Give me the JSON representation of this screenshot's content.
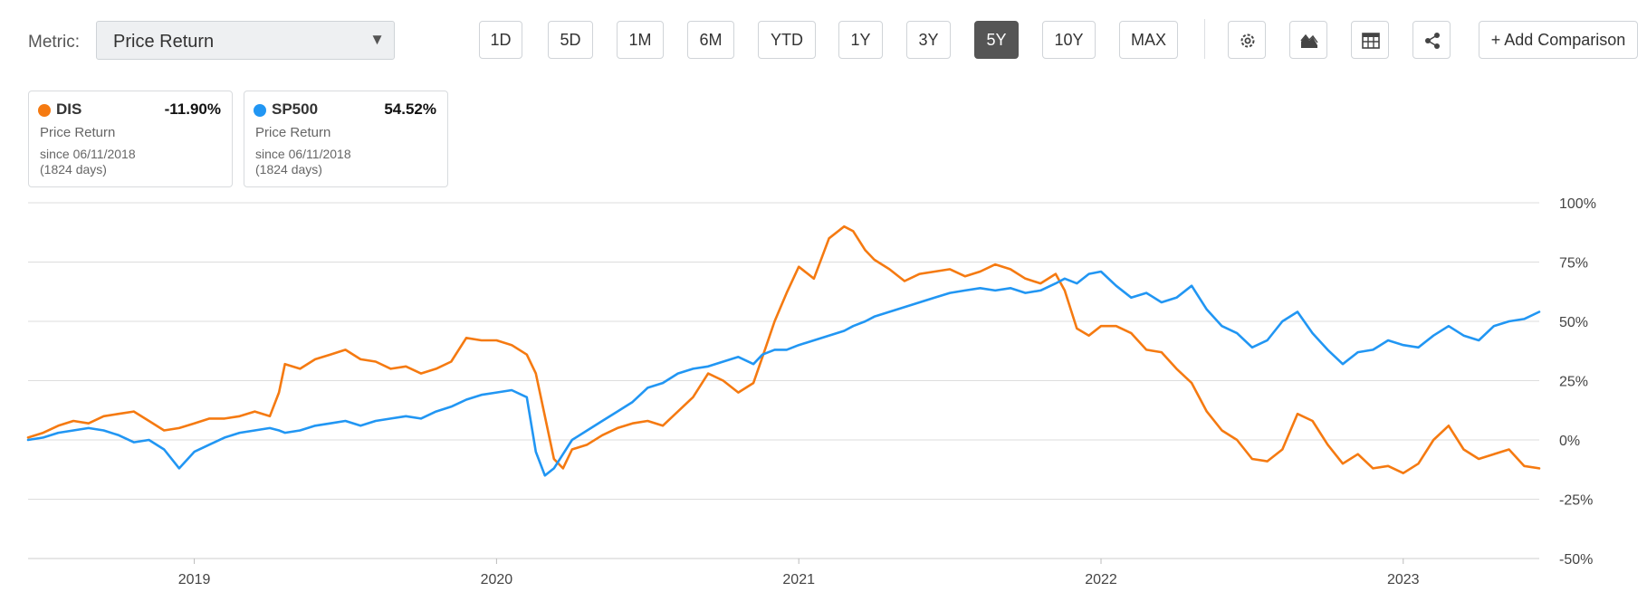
{
  "metric": {
    "label": "Metric:",
    "selected": "Price Return"
  },
  "time_ranges": [
    "1D",
    "5D",
    "1M",
    "6M",
    "YTD",
    "1Y",
    "3Y",
    "5Y",
    "10Y",
    "MAX"
  ],
  "active_range": "5Y",
  "toolbar_icons": [
    "gear-icon",
    "chart-type-icon",
    "table-icon",
    "share-icon"
  ],
  "add_comparison_label": "+ Add Comparison",
  "legend": [
    {
      "symbol": "DIS",
      "change": "-11.90%",
      "metric": "Price Return",
      "since": "since 06/11/2018",
      "days": "(1824 days)",
      "color": "#f57a11"
    },
    {
      "symbol": "SP500",
      "change": "54.52%",
      "metric": "Price Return",
      "since": "since 06/11/2018",
      "days": "(1824 days)",
      "color": "#2196f3"
    }
  ],
  "chart_data": {
    "type": "line",
    "title": "",
    "xlabel": "",
    "ylabel": "",
    "x_unit": "year",
    "xlim": [
      2018.45,
      2023.45
    ],
    "ylim": [
      -50,
      100
    ],
    "x_ticks": [
      2019,
      2020,
      2021,
      2022,
      2023
    ],
    "x_tick_labels": [
      "2019",
      "2020",
      "2021",
      "2022",
      "2023"
    ],
    "y_ticks": [
      100,
      75,
      50,
      25,
      0,
      -25,
      -50
    ],
    "y_tick_labels": [
      "100%",
      "75%",
      "50%",
      "25%",
      "0%",
      "-25%",
      "-50%"
    ],
    "grid": "horizontal",
    "legend_position": "top-left",
    "series": [
      {
        "name": "DIS",
        "color": "#f57a11",
        "x": [
          2018.45,
          2018.5,
          2018.55,
          2018.6,
          2018.65,
          2018.7,
          2018.75,
          2018.8,
          2018.85,
          2018.9,
          2018.95,
          2019.0,
          2019.05,
          2019.1,
          2019.15,
          2019.2,
          2019.25,
          2019.28,
          2019.3,
          2019.35,
          2019.4,
          2019.45,
          2019.5,
          2019.55,
          2019.6,
          2019.65,
          2019.7,
          2019.75,
          2019.8,
          2019.85,
          2019.9,
          2019.95,
          2020.0,
          2020.05,
          2020.1,
          2020.13,
          2020.16,
          2020.19,
          2020.22,
          2020.25,
          2020.3,
          2020.35,
          2020.4,
          2020.45,
          2020.5,
          2020.55,
          2020.6,
          2020.65,
          2020.7,
          2020.75,
          2020.8,
          2020.85,
          2020.88,
          2020.92,
          2020.96,
          2021.0,
          2021.05,
          2021.1,
          2021.15,
          2021.18,
          2021.22,
          2021.25,
          2021.3,
          2021.35,
          2021.4,
          2021.45,
          2021.5,
          2021.55,
          2021.6,
          2021.65,
          2021.7,
          2021.75,
          2021.8,
          2021.85,
          2021.88,
          2021.92,
          2021.96,
          2022.0,
          2022.05,
          2022.1,
          2022.15,
          2022.2,
          2022.25,
          2022.3,
          2022.35,
          2022.4,
          2022.45,
          2022.5,
          2022.55,
          2022.6,
          2022.65,
          2022.7,
          2022.75,
          2022.8,
          2022.85,
          2022.9,
          2022.95,
          2023.0,
          2023.05,
          2023.1,
          2023.15,
          2023.2,
          2023.25,
          2023.3,
          2023.35,
          2023.4,
          2023.45
        ],
        "values": [
          1,
          3,
          6,
          8,
          7,
          10,
          11,
          12,
          8,
          4,
          5,
          7,
          9,
          9,
          10,
          12,
          10,
          20,
          32,
          30,
          34,
          36,
          38,
          34,
          33,
          30,
          31,
          28,
          30,
          33,
          43,
          42,
          42,
          40,
          36,
          28,
          10,
          -8,
          -12,
          -4,
          -2,
          2,
          5,
          7,
          8,
          6,
          12,
          18,
          28,
          25,
          20,
          24,
          35,
          50,
          62,
          73,
          68,
          85,
          90,
          88,
          80,
          76,
          72,
          67,
          70,
          71,
          72,
          69,
          71,
          74,
          72,
          68,
          66,
          70,
          63,
          47,
          44,
          48,
          48,
          45,
          38,
          37,
          30,
          24,
          12,
          4,
          0,
          -8,
          -9,
          -4,
          11,
          8,
          -2,
          -10,
          -6,
          -12,
          -11,
          -14,
          -10,
          0,
          6,
          -4,
          -8,
          -6,
          -4,
          -11,
          -12
        ]
      },
      {
        "name": "SP500",
        "color": "#2196f3",
        "x": [
          2018.45,
          2018.5,
          2018.55,
          2018.6,
          2018.65,
          2018.7,
          2018.75,
          2018.8,
          2018.85,
          2018.9,
          2018.95,
          2019.0,
          2019.05,
          2019.1,
          2019.15,
          2019.2,
          2019.25,
          2019.28,
          2019.3,
          2019.35,
          2019.4,
          2019.45,
          2019.5,
          2019.55,
          2019.6,
          2019.65,
          2019.7,
          2019.75,
          2019.8,
          2019.85,
          2019.9,
          2019.95,
          2020.0,
          2020.05,
          2020.1,
          2020.13,
          2020.16,
          2020.19,
          2020.22,
          2020.25,
          2020.3,
          2020.35,
          2020.4,
          2020.45,
          2020.5,
          2020.55,
          2020.6,
          2020.65,
          2020.7,
          2020.75,
          2020.8,
          2020.85,
          2020.88,
          2020.92,
          2020.96,
          2021.0,
          2021.05,
          2021.1,
          2021.15,
          2021.18,
          2021.22,
          2021.25,
          2021.3,
          2021.35,
          2021.4,
          2021.45,
          2021.5,
          2021.55,
          2021.6,
          2021.65,
          2021.7,
          2021.75,
          2021.8,
          2021.85,
          2021.88,
          2021.92,
          2021.96,
          2022.0,
          2022.05,
          2022.1,
          2022.15,
          2022.2,
          2022.25,
          2022.3,
          2022.35,
          2022.4,
          2022.45,
          2022.5,
          2022.55,
          2022.6,
          2022.65,
          2022.7,
          2022.75,
          2022.8,
          2022.85,
          2022.9,
          2022.95,
          2023.0,
          2023.05,
          2023.1,
          2023.15,
          2023.2,
          2023.25,
          2023.3,
          2023.35,
          2023.4,
          2023.45
        ],
        "values": [
          0,
          1,
          3,
          4,
          5,
          4,
          2,
          -1,
          0,
          -4,
          -12,
          -5,
          -2,
          1,
          3,
          4,
          5,
          4,
          3,
          4,
          6,
          7,
          8,
          6,
          8,
          9,
          10,
          9,
          12,
          14,
          17,
          19,
          20,
          21,
          18,
          -5,
          -15,
          -12,
          -6,
          0,
          4,
          8,
          12,
          16,
          22,
          24,
          28,
          30,
          31,
          33,
          35,
          32,
          36,
          38,
          38,
          40,
          42,
          44,
          46,
          48,
          50,
          52,
          54,
          56,
          58,
          60,
          62,
          63,
          64,
          63,
          64,
          62,
          63,
          66,
          68,
          66,
          70,
          71,
          65,
          60,
          62,
          58,
          60,
          65,
          55,
          48,
          45,
          39,
          42,
          50,
          54,
          45,
          38,
          32,
          37,
          38,
          42,
          40,
          39,
          44,
          48,
          44,
          42,
          48,
          50,
          51,
          54
        ]
      }
    ]
  }
}
